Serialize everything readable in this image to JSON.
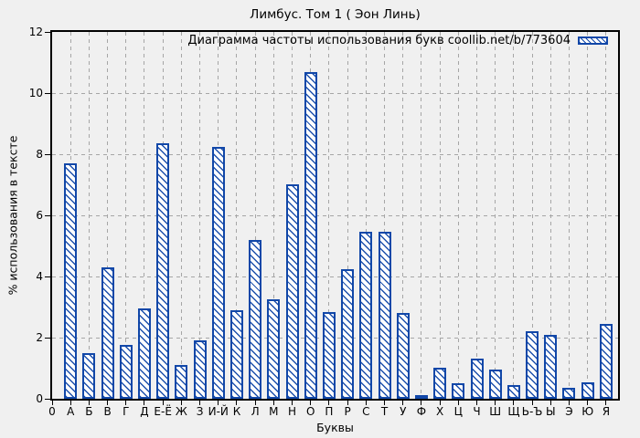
{
  "page": {
    "background": "#f0f0f0"
  },
  "chart_data": {
    "type": "bar",
    "title": "Лимбус. Том 1 ( Эон Линь)",
    "legend": "Диаграмма частоты использования букв coollib.net/b/773604",
    "legend_position": "top-right",
    "xlabel": "Буквы",
    "ylabel": "% использования в тексте",
    "x_first_tick": "0",
    "ylim": [
      0,
      12
    ],
    "yticks": [
      0,
      2,
      4,
      6,
      8,
      10,
      12
    ],
    "grid": true,
    "categories": [
      "А",
      "Б",
      "В",
      "Г",
      "Д",
      "Е-Ё",
      "Ж",
      "З",
      "И-Й",
      "К",
      "Л",
      "М",
      "Н",
      "О",
      "П",
      "Р",
      "С",
      "Т",
      "У",
      "Ф",
      "Х",
      "Ц",
      "Ч",
      "Ш",
      "Щ",
      "Ь-Ъ",
      "Ы",
      "Э",
      "Ю",
      "Я"
    ],
    "values": [
      7.7,
      1.5,
      4.3,
      1.75,
      2.95,
      8.35,
      1.1,
      1.9,
      8.25,
      2.9,
      5.2,
      3.25,
      7.0,
      10.7,
      2.85,
      4.25,
      5.45,
      5.45,
      2.8,
      0.1,
      1.0,
      0.5,
      1.3,
      0.95,
      0.45,
      2.2,
      2.1,
      0.35,
      0.55,
      2.45
    ],
    "colors": {
      "bar_outline": "#1147a8",
      "bar_fill": "#ffffff",
      "hatch_style": "diagonal-backslash",
      "grid": "#a6a6a6",
      "axis": "#000000",
      "text": "#000000",
      "background": "#f0f0f0"
    }
  }
}
